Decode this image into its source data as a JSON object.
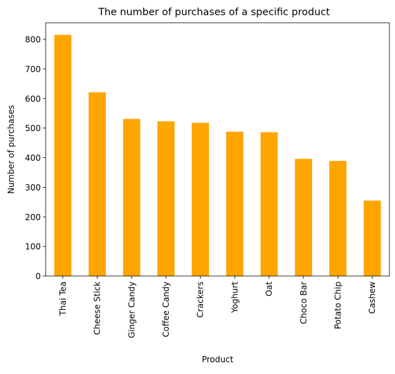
{
  "chart_data": {
    "type": "bar",
    "title": "The number of purchases of a specific product",
    "xlabel": "Product",
    "ylabel": "Number of purchases",
    "categories": [
      "Thai Tea",
      "Cheese Stick",
      "Ginger Candy",
      "Coffee Candy",
      "Crackers",
      "Yoghurt",
      "Oat",
      "Choco Bar",
      "Potato Chip",
      "Cashew"
    ],
    "values": [
      815,
      621,
      531,
      523,
      518,
      488,
      486,
      396,
      389,
      255
    ],
    "ylim": [
      0,
      856
    ],
    "yticks": [
      0,
      100,
      200,
      300,
      400,
      500,
      600,
      700,
      800
    ],
    "bar_color": "#ffa500",
    "grid": false,
    "legend": "none"
  }
}
